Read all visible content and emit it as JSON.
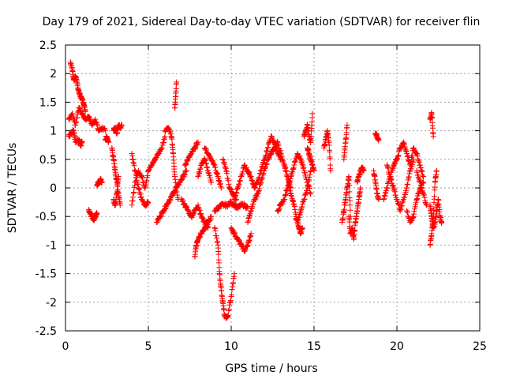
{
  "chart_data": {
    "type": "scatter",
    "title": "Day 179 of 2021, Sidereal Day-to-day VTEC variation (SDTVAR) for receiver flin",
    "xlabel": "GPS time / hours",
    "ylabel": "SDTVAR / TECUs",
    "xlim": [
      0,
      25
    ],
    "ylim": [
      -2.5,
      2.5
    ],
    "xticks": [
      "0",
      "5",
      "10",
      "15",
      "20",
      "25"
    ],
    "yticks": [
      "2.5",
      "2",
      "1.5",
      "1",
      "0.5",
      "0",
      "-0.5",
      "-1",
      "-1.5",
      "-2",
      "-2.5"
    ],
    "grid": true,
    "marker": "+",
    "series_color": "#ff0000",
    "segments": [
      {
        "x": [
          0.2,
          0.4,
          0.6,
          0.8,
          1.0,
          1.2,
          1.4,
          1.6,
          1.8,
          2.0,
          2.2,
          2.4
        ],
        "y": [
          1.2,
          1.3,
          1.1,
          1.4,
          1.3,
          1.2,
          1.25,
          1.1,
          1.2,
          1.0,
          1.05,
          1.0
        ]
      },
      {
        "x": [
          0.2,
          0.3,
          0.5,
          0.6,
          0.8,
          0.9,
          1.0
        ],
        "y": [
          0.9,
          0.95,
          1.0,
          0.8,
          0.85,
          0.75,
          0.8
        ]
      },
      {
        "x": [
          0.3,
          0.4,
          0.5,
          0.6,
          0.7,
          0.8,
          0.9,
          1.0,
          1.1,
          1.2
        ],
        "y": [
          2.2,
          2.1,
          1.9,
          1.95,
          1.85,
          1.7,
          1.6,
          1.55,
          1.45,
          1.35
        ]
      },
      {
        "x": [
          1.4,
          1.5,
          1.6,
          1.7,
          1.8,
          1.9
        ],
        "y": [
          -0.4,
          -0.45,
          -0.5,
          -0.55,
          -0.5,
          -0.45
        ]
      },
      {
        "x": [
          1.9,
          2.0,
          2.1,
          2.2
        ],
        "y": [
          0.05,
          0.1,
          0.15,
          0.1
        ]
      },
      {
        "x": [
          2.4,
          2.5,
          2.6
        ],
        "y": [
          0.85,
          0.9,
          0.8
        ]
      },
      {
        "x": [
          2.9,
          3.0,
          3.1,
          3.2,
          3.3,
          3.4
        ],
        "y": [
          1.0,
          1.05,
          0.95,
          1.1,
          1.05,
          1.1
        ]
      },
      {
        "x": [
          2.8,
          2.9,
          3.0,
          3.1,
          3.2,
          3.3
        ],
        "y": [
          0.7,
          0.5,
          0.3,
          0.1,
          -0.1,
          -0.3
        ]
      },
      {
        "x": [
          2.9,
          3.0,
          3.1,
          3.2
        ],
        "y": [
          -0.2,
          -0.3,
          -0.1,
          0.2
        ]
      },
      {
        "x": [
          4.0,
          4.2,
          4.4,
          4.6,
          4.8,
          5.0,
          5.2,
          5.4,
          5.6,
          5.8,
          6.0
        ],
        "y": [
          -0.3,
          0.1,
          0.3,
          0.2,
          0.0,
          0.3,
          0.4,
          0.5,
          0.6,
          0.7,
          0.9
        ]
      },
      {
        "x": [
          4.0,
          4.2,
          4.4,
          4.6,
          4.8,
          5.0
        ],
        "y": [
          0.6,
          0.3,
          0.0,
          -0.2,
          -0.3,
          -0.25
        ]
      },
      {
        "x": [
          5.5,
          5.7,
          5.9,
          6.1,
          6.3,
          6.5,
          6.7,
          6.9,
          7.1,
          7.3
        ],
        "y": [
          -0.6,
          -0.5,
          -0.4,
          -0.3,
          -0.2,
          -0.1,
          0.0,
          0.1,
          0.2,
          0.3
        ]
      },
      {
        "x": [
          6.0,
          6.2,
          6.4,
          6.5,
          6.6,
          6.8
        ],
        "y": [
          1.0,
          1.05,
          0.9,
          0.6,
          0.2,
          -0.2
        ]
      },
      {
        "x": [
          6.6,
          6.65,
          6.7
        ],
        "y": [
          1.4,
          1.6,
          1.85
        ]
      },
      {
        "x": [
          7.2,
          7.4,
          7.6,
          7.8,
          8.0
        ],
        "y": [
          0.4,
          0.5,
          0.6,
          0.7,
          0.8
        ]
      },
      {
        "x": [
          7.0,
          7.2,
          7.4,
          7.6,
          7.8,
          8.0,
          8.2,
          8.4,
          8.6
        ],
        "y": [
          -0.2,
          -0.3,
          -0.4,
          -0.5,
          -0.4,
          -0.3,
          -0.5,
          -0.6,
          -0.7
        ]
      },
      {
        "x": [
          8.0,
          8.2,
          8.4,
          8.6,
          8.8
        ],
        "y": [
          0.2,
          0.4,
          0.5,
          0.3,
          0.1
        ]
      },
      {
        "x": [
          7.8,
          7.9,
          8.0,
          8.2,
          8.4,
          8.6,
          8.8
        ],
        "y": [
          -1.2,
          -1.0,
          -0.9,
          -0.8,
          -0.7,
          -0.6,
          -0.5
        ]
      },
      {
        "x": [
          8.4,
          8.6,
          8.8,
          9.0,
          9.2,
          9.4
        ],
        "y": [
          0.7,
          0.6,
          0.5,
          0.4,
          0.2,
          0.0
        ]
      },
      {
        "x": [
          9.0,
          9.2,
          9.3,
          9.4,
          9.5,
          9.6,
          9.8,
          10.0,
          10.2
        ],
        "y": [
          -0.7,
          -1.0,
          -1.5,
          -1.8,
          -2.0,
          -2.25,
          -2.25,
          -1.9,
          -1.5
        ]
      },
      {
        "x": [
          9.0,
          9.2,
          9.4,
          9.6,
          9.8,
          10.0,
          10.2,
          10.4,
          10.6,
          10.8,
          11.0
        ],
        "y": [
          -0.4,
          -0.35,
          -0.3,
          -0.3,
          -0.3,
          -0.25,
          -0.3,
          -0.35,
          -0.3,
          -0.3,
          -0.35
        ]
      },
      {
        "x": [
          9.5,
          9.7,
          9.9,
          10.1,
          10.3
        ],
        "y": [
          0.5,
          0.3,
          0.0,
          -0.1,
          -0.2
        ]
      },
      {
        "x": [
          10.0,
          10.2,
          10.4,
          10.6,
          10.8,
          11.0,
          11.2
        ],
        "y": [
          -0.7,
          -0.8,
          -0.9,
          -1.0,
          -1.1,
          -1.0,
          -0.8
        ]
      },
      {
        "x": [
          10.2,
          10.4,
          10.6,
          10.8,
          11.0,
          11.2,
          11.4,
          11.6,
          11.8,
          12.0,
          12.2,
          12.4,
          12.6,
          12.8,
          13.0
        ],
        "y": [
          -0.2,
          0.0,
          0.2,
          0.4,
          0.3,
          0.2,
          0.0,
          0.1,
          0.3,
          0.5,
          0.7,
          0.9,
          0.8,
          0.6,
          0.5
        ]
      },
      {
        "x": [
          11.0,
          11.2,
          11.4,
          11.6,
          11.8,
          12.0,
          12.2,
          12.4,
          12.6,
          12.8,
          13.0,
          13.2,
          13.4,
          13.6
        ],
        "y": [
          -0.6,
          -0.4,
          -0.2,
          -0.1,
          0.1,
          0.3,
          0.5,
          0.6,
          0.7,
          0.8,
          0.6,
          0.4,
          0.2,
          0.0
        ]
      },
      {
        "x": [
          12.8,
          13.0,
          13.2,
          13.4,
          13.6,
          13.8,
          14.0,
          14.2,
          14.4,
          14.6,
          14.8
        ],
        "y": [
          -0.4,
          -0.3,
          -0.2,
          0.0,
          0.2,
          0.4,
          0.6,
          0.5,
          0.3,
          0.1,
          -0.1
        ]
      },
      {
        "x": [
          13.2,
          13.4,
          13.6,
          13.8,
          14.0,
          14.2,
          14.4,
          14.6,
          14.8
        ],
        "y": [
          0.4,
          0.2,
          -0.1,
          -0.3,
          -0.6,
          -0.4,
          -0.2,
          0.0,
          0.3
        ]
      },
      {
        "x": [
          13.9,
          14.0,
          14.1,
          14.2,
          14.3
        ],
        "y": [
          -0.5,
          -0.6,
          -0.7,
          -0.8,
          -0.7
        ]
      },
      {
        "x": [
          14.4,
          14.5,
          14.6,
          14.7,
          14.8,
          14.9
        ],
        "y": [
          0.9,
          1.0,
          1.1,
          0.9,
          0.8,
          1.3
        ]
      },
      {
        "x": [
          14.6,
          14.7,
          14.8,
          14.9,
          15.0
        ],
        "y": [
          0.7,
          0.6,
          0.5,
          0.4,
          0.3
        ]
      },
      {
        "x": [
          15.6,
          15.7,
          15.8,
          15.9,
          16.0
        ],
        "y": [
          0.7,
          0.85,
          1.0,
          0.8,
          0.3
        ]
      },
      {
        "x": [
          16.7,
          16.8,
          16.9,
          17.0,
          17.1,
          17.2
        ],
        "y": [
          -0.6,
          -0.4,
          -0.2,
          0.0,
          0.2,
          -0.5
        ]
      },
      {
        "x": [
          16.8,
          16.9,
          17.0
        ],
        "y": [
          0.5,
          0.8,
          1.1
        ]
      },
      {
        "x": [
          17.1,
          17.2,
          17.3,
          17.4,
          17.5,
          17.6,
          17.7,
          17.8
        ],
        "y": [
          -0.5,
          -0.8,
          -0.7,
          -0.9,
          -0.6,
          -0.4,
          -0.2,
          0.0
        ]
      },
      {
        "x": [
          17.6,
          17.7,
          17.8,
          17.9,
          18.0
        ],
        "y": [
          0.1,
          0.2,
          0.3,
          0.35,
          0.3
        ]
      },
      {
        "x": [
          18.6,
          18.7,
          18.8,
          18.9
        ],
        "y": [
          0.3,
          0.1,
          -0.1,
          -0.2
        ]
      },
      {
        "x": [
          18.7,
          18.8,
          18.9
        ],
        "y": [
          0.95,
          0.9,
          0.85
        ]
      },
      {
        "x": [
          19.2,
          19.4,
          19.6,
          19.8,
          20.0
        ],
        "y": [
          -0.2,
          0.0,
          0.2,
          0.4,
          0.5
        ]
      },
      {
        "x": [
          19.4,
          19.6,
          19.8,
          20.0,
          20.2,
          20.4,
          20.6,
          20.8,
          21.0
        ],
        "y": [
          0.4,
          0.2,
          0.0,
          -0.2,
          -0.4,
          -0.2,
          0.0,
          0.3,
          0.5
        ]
      },
      {
        "x": [
          20.0,
          20.2,
          20.4,
          20.6,
          20.8,
          21.0,
          21.2,
          21.4,
          21.6
        ],
        "y": [
          0.5,
          0.7,
          0.8,
          0.6,
          0.4,
          0.7,
          0.6,
          0.4,
          0.2
        ]
      },
      {
        "x": [
          20.6,
          20.8,
          21.0,
          21.2,
          21.4,
          21.6
        ],
        "y": [
          -0.4,
          -0.6,
          -0.5,
          -0.2,
          0.0,
          0.1
        ]
      },
      {
        "x": [
          21.2,
          21.4,
          21.6,
          21.8
        ],
        "y": [
          0.3,
          0.1,
          -0.1,
          -0.3
        ]
      },
      {
        "x": [
          22.0,
          22.1,
          22.2
        ],
        "y": [
          1.2,
          1.3,
          0.9
        ]
      },
      {
        "x": [
          22.0,
          22.1,
          22.2,
          22.3,
          22.4,
          22.5,
          22.6,
          22.7
        ],
        "y": [
          -0.3,
          -0.5,
          -0.7,
          -0.6,
          -0.4,
          -0.2,
          -0.5,
          -0.6
        ]
      },
      {
        "x": [
          22.0,
          22.1,
          22.2,
          22.3,
          22.4
        ],
        "y": [
          -1.0,
          -0.8,
          -0.5,
          0.1,
          0.3
        ]
      }
    ]
  }
}
